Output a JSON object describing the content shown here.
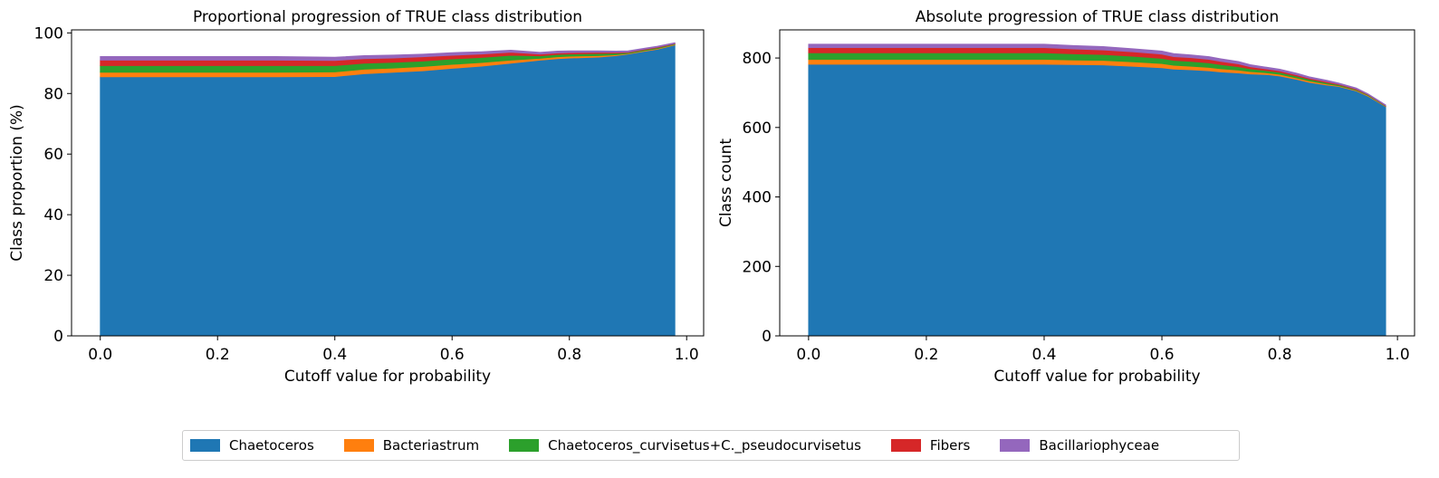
{
  "colors": [
    "#1f77b4",
    "#ff7f0e",
    "#2ca02c",
    "#d62728",
    "#9467bd"
  ],
  "legend": {
    "items": [
      {
        "label": "Chaetoceros"
      },
      {
        "label": "Bacteriastrum"
      },
      {
        "label": "Chaetoceros_curvisetus+C._pseudocurvisetus"
      },
      {
        "label": "Fibers"
      },
      {
        "label": "Bacillariophyceae"
      }
    ]
  },
  "chart_data": [
    {
      "type": "area",
      "stacked": true,
      "title": "Proportional progression of TRUE class distribution",
      "xlabel": "Cutoff value for probability",
      "ylabel": "Class proportion (%)",
      "xlim": [
        -0.049,
        1.029
      ],
      "ylim": [
        0,
        101
      ],
      "xticks": [
        0.0,
        0.2,
        0.4,
        0.6,
        0.8,
        1.0
      ],
      "xtick_labels": [
        "0.0",
        "0.2",
        "0.4",
        "0.6",
        "0.8",
        "1.0"
      ],
      "yticks": [
        0,
        20,
        40,
        60,
        80,
        100
      ],
      "ytick_labels": [
        "0",
        "20",
        "40",
        "60",
        "80",
        "100"
      ],
      "x": [
        0.0,
        0.1,
        0.2,
        0.3,
        0.4,
        0.45,
        0.5,
        0.55,
        0.6,
        0.65,
        0.7,
        0.75,
        0.78,
        0.8,
        0.85,
        0.88,
        0.9,
        0.93,
        0.95,
        0.98
      ],
      "series": [
        {
          "name": "Chaetoceros",
          "values": [
            85.5,
            85.5,
            85.5,
            85.5,
            85.6,
            86.5,
            87.0,
            87.5,
            88.3,
            89.0,
            90.0,
            91.0,
            91.5,
            91.7,
            92.0,
            92.5,
            93.0,
            94.0,
            94.6,
            96.0
          ]
        },
        {
          "name": "Bacteriastrum",
          "values": [
            1.5,
            1.5,
            1.5,
            1.5,
            1.5,
            1.5,
            1.4,
            1.4,
            1.3,
            1.2,
            1.0,
            0.6,
            0.6,
            0.6,
            0.5,
            0.3,
            0.2,
            0.2,
            0.2,
            0.2
          ]
        },
        {
          "name": "Chaetoceros_curvisetus+C._pseudocurvisetus",
          "values": [
            2.2,
            2.2,
            2.2,
            2.2,
            2.1,
            2.0,
            1.9,
            1.8,
            1.8,
            1.7,
            1.6,
            0.8,
            0.8,
            0.7,
            0.7,
            0.5,
            0.3,
            0.3,
            0.3,
            0.2
          ]
        },
        {
          "name": "Fibers",
          "values": [
            1.8,
            1.8,
            1.8,
            1.8,
            1.7,
            1.5,
            1.4,
            1.4,
            1.2,
            1.1,
            1.0,
            0.6,
            0.5,
            0.5,
            0.4,
            0.3,
            0.2,
            0.2,
            0.2,
            0.1
          ]
        },
        {
          "name": "Bacillariophyceae",
          "values": [
            1.2,
            1.2,
            1.2,
            1.2,
            1.1,
            1.0,
            1.0,
            0.9,
            0.9,
            0.8,
            0.7,
            0.6,
            0.6,
            0.6,
            0.5,
            0.4,
            0.4,
            0.3,
            0.3,
            0.3
          ]
        }
      ]
    },
    {
      "type": "area",
      "stacked": true,
      "title": "Absolute progression of TRUE class distribution",
      "xlabel": "Cutoff value for probability",
      "ylabel": "Class count",
      "xlim": [
        -0.049,
        1.029
      ],
      "ylim": [
        0,
        881
      ],
      "xticks": [
        0.0,
        0.2,
        0.4,
        0.6,
        0.8,
        1.0
      ],
      "xtick_labels": [
        "0.0",
        "0.2",
        "0.4",
        "0.6",
        "0.8",
        "1.0"
      ],
      "yticks": [
        0,
        200,
        400,
        600,
        800
      ],
      "ytick_labels": [
        "0",
        "200",
        "400",
        "600",
        "800"
      ],
      "x": [
        0.0,
        0.1,
        0.2,
        0.3,
        0.4,
        0.45,
        0.5,
        0.55,
        0.6,
        0.62,
        0.65,
        0.68,
        0.7,
        0.73,
        0.75,
        0.78,
        0.8,
        0.83,
        0.85,
        0.88,
        0.9,
        0.93,
        0.95,
        0.98
      ],
      "series": [
        {
          "name": "Chaetoceros",
          "values": [
            782,
            782,
            782,
            782,
            782,
            781,
            780,
            776,
            772,
            768,
            766,
            763,
            760,
            757,
            754,
            752,
            748,
            738,
            730,
            722,
            718,
            705,
            690,
            660
          ]
        },
        {
          "name": "Bacteriastrum",
          "values": [
            14,
            14,
            14,
            14,
            14,
            13,
            13,
            13,
            12,
            11,
            10,
            10,
            9,
            8,
            7,
            5,
            5,
            4,
            4,
            3,
            2,
            2,
            2,
            1
          ]
        },
        {
          "name": "Chaetoceros_curvisetus+C._pseudocurvisetus",
          "values": [
            19,
            19,
            19,
            19,
            19,
            18,
            17,
            16,
            15,
            14,
            14,
            13,
            12,
            10,
            8,
            6,
            6,
            5,
            5,
            4,
            3,
            2,
            2,
            1
          ]
        },
        {
          "name": "Fibers",
          "values": [
            15,
            15,
            15,
            15,
            15,
            14,
            13,
            13,
            12,
            11,
            11,
            10,
            9,
            8,
            6,
            5,
            4,
            4,
            3,
            3,
            2,
            2,
            1,
            1
          ]
        },
        {
          "name": "Bacillariophyceae",
          "values": [
            10,
            10,
            10,
            10,
            10,
            10,
            10,
            9,
            9,
            9,
            8,
            8,
            8,
            7,
            6,
            5,
            5,
            5,
            4,
            4,
            3,
            3,
            2,
            2
          ]
        }
      ]
    }
  ]
}
